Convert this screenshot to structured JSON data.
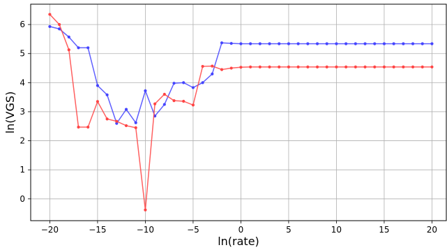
{
  "chart_data": {
    "type": "line",
    "xlabel": "ln(rate)",
    "ylabel": "ln(VGS)",
    "xlim": [
      -22,
      21.5
    ],
    "ylim": [
      -0.75,
      6.7
    ],
    "xticks": [
      -20,
      -15,
      -10,
      -5,
      0,
      5,
      10,
      15,
      20
    ],
    "xtick_labels": [
      "−20",
      "−15",
      "−10",
      "−5",
      "0",
      "5",
      "10",
      "15",
      "20"
    ],
    "yticks": [
      0,
      1,
      2,
      3,
      4,
      5,
      6
    ],
    "ytick_labels": [
      "0",
      "1",
      "2",
      "3",
      "4",
      "5",
      "6"
    ],
    "grid": true,
    "x": [
      -20,
      -19,
      -18,
      -17,
      -16,
      -15,
      -14,
      -13,
      -12,
      -11,
      -10,
      -9,
      -8,
      -7,
      -6,
      -5,
      -4,
      -3,
      -2,
      -1,
      0,
      1,
      2,
      3,
      4,
      5,
      6,
      7,
      8,
      9,
      10,
      11,
      12,
      13,
      14,
      15,
      16,
      17,
      18,
      19,
      20
    ],
    "series": [
      {
        "color": "#4444ff",
        "values": [
          5.93,
          5.85,
          5.57,
          5.2,
          5.2,
          3.9,
          3.58,
          2.6,
          3.08,
          2.62,
          3.72,
          2.85,
          3.25,
          3.98,
          4.0,
          3.83,
          4.0,
          4.3,
          5.37,
          5.35,
          5.34,
          5.34,
          5.34,
          5.34,
          5.34,
          5.34,
          5.34,
          5.34,
          5.34,
          5.34,
          5.34,
          5.34,
          5.34,
          5.34,
          5.34,
          5.34,
          5.34,
          5.34,
          5.34,
          5.34,
          5.34
        ]
      },
      {
        "color": "#ff4444",
        "values": [
          6.35,
          6.0,
          5.13,
          2.47,
          2.47,
          3.35,
          2.75,
          2.67,
          2.52,
          2.45,
          -0.38,
          3.27,
          3.6,
          3.38,
          3.36,
          3.23,
          4.56,
          4.57,
          4.45,
          4.5,
          4.53,
          4.54,
          4.54,
          4.54,
          4.54,
          4.54,
          4.54,
          4.54,
          4.54,
          4.54,
          4.54,
          4.54,
          4.54,
          4.54,
          4.54,
          4.54,
          4.54,
          4.54,
          4.54,
          4.54,
          4.54
        ]
      }
    ]
  }
}
